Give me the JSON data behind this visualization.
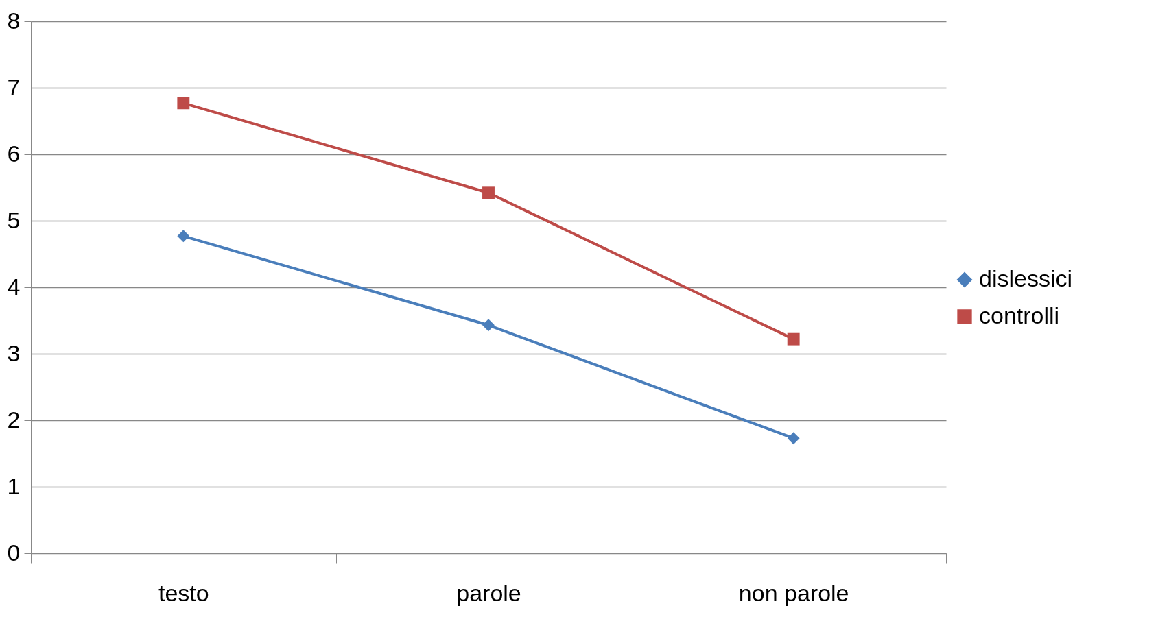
{
  "chart_data": {
    "type": "line",
    "categories": [
      "testo",
      "parole",
      "non parole"
    ],
    "series": [
      {
        "name": "dislessici",
        "color": "#4a7ebb",
        "marker": "diamond",
        "values": [
          4.77,
          3.43,
          1.73
        ]
      },
      {
        "name": "controlli",
        "color": "#be4b48",
        "marker": "square",
        "values": [
          6.77,
          5.42,
          3.22
        ]
      }
    ],
    "ylim": [
      0,
      8
    ],
    "yticks": [
      0,
      1,
      2,
      3,
      4,
      5,
      6,
      7,
      8
    ],
    "grid": "y",
    "legend": "right"
  }
}
